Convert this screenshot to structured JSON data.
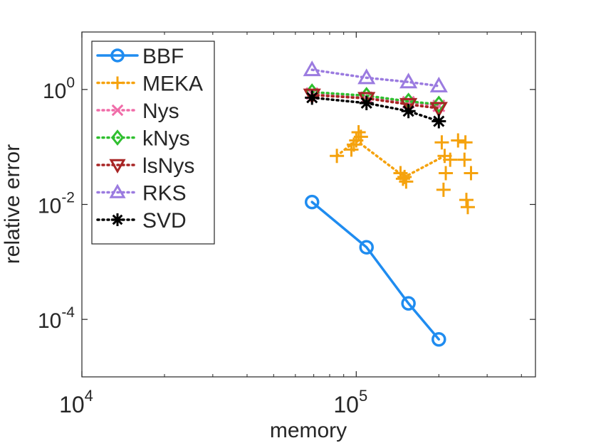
{
  "chart_data": {
    "type": "scatter",
    "xscale": "log",
    "yscale": "log",
    "xlim": [
      10000,
      450000
    ],
    "ylim": [
      1e-05,
      10
    ],
    "xlabel": "memory",
    "ylabel": "relative error",
    "x_ticks": [
      {
        "value": 10000,
        "base": "10",
        "exp": "4"
      },
      {
        "value": 100000,
        "base": "10",
        "exp": "5"
      }
    ],
    "y_ticks": [
      {
        "value": 1,
        "base": "10",
        "exp": "0"
      },
      {
        "value": 0.01,
        "base": "10",
        "exp": "-2"
      },
      {
        "value": 0.0001,
        "base": "10",
        "exp": "-4"
      }
    ],
    "legend_position": "top-left",
    "series": [
      {
        "name": "BBF",
        "color": "#1f8cf0",
        "marker": "circle",
        "line": "solid",
        "points": [
          [
            69000,
            0.011
          ],
          [
            109000,
            0.0018
          ],
          [
            155000,
            0.00019
          ],
          [
            200000,
            4.5e-05
          ]
        ],
        "extra_points": []
      },
      {
        "name": "MEKA",
        "color": "#f5a20d",
        "marker": "plus",
        "line": "dotted",
        "points": [
          [
            85000,
            0.07
          ],
          [
            100000,
            0.13
          ],
          [
            150000,
            0.03
          ],
          [
            210000,
            0.07
          ]
        ],
        "extra_points": [
          [
            96000,
            0.09
          ],
          [
            102000,
            0.18
          ],
          [
            104000,
            0.15
          ],
          [
            98000,
            0.11
          ],
          [
            145000,
            0.035
          ],
          [
            152000,
            0.025
          ],
          [
            148000,
            0.028
          ],
          [
            205000,
            0.12
          ],
          [
            212000,
            0.035
          ],
          [
            208000,
            0.018
          ],
          [
            220000,
            0.06
          ],
          [
            235000,
            0.13
          ],
          [
            250000,
            0.12
          ],
          [
            248000,
            0.06
          ],
          [
            262000,
            0.035
          ],
          [
            252000,
            0.012
          ],
          [
            255000,
            0.009
          ]
        ]
      },
      {
        "name": "Nys",
        "color": "#f06ca8",
        "marker": "x",
        "line": "dotted",
        "points": [
          [
            69000,
            0.85
          ],
          [
            109000,
            0.72
          ],
          [
            155000,
            0.6
          ],
          [
            200000,
            0.52
          ]
        ],
        "extra_points": []
      },
      {
        "name": "kNys",
        "color": "#2fbf2f",
        "marker": "diamond",
        "line": "dotted",
        "points": [
          [
            69000,
            0.9
          ],
          [
            109000,
            0.78
          ],
          [
            155000,
            0.62
          ],
          [
            200000,
            0.55
          ]
        ],
        "extra_points": []
      },
      {
        "name": "lsNys",
        "color": "#a82525",
        "marker": "triangle-down",
        "line": "dotted",
        "points": [
          [
            69000,
            0.8
          ],
          [
            109000,
            0.7
          ],
          [
            155000,
            0.55
          ],
          [
            200000,
            0.47
          ]
        ],
        "extra_points": []
      },
      {
        "name": "RKS",
        "color": "#9b7be0",
        "marker": "triangle-up",
        "line": "dotted",
        "points": [
          [
            69000,
            2.2
          ],
          [
            109000,
            1.6
          ],
          [
            155000,
            1.35
          ],
          [
            200000,
            1.15
          ]
        ],
        "extra_points": []
      },
      {
        "name": "SVD",
        "color": "#000000",
        "marker": "asterisk",
        "line": "dotted",
        "points": [
          [
            69000,
            0.72
          ],
          [
            109000,
            0.58
          ],
          [
            155000,
            0.42
          ],
          [
            200000,
            0.28
          ]
        ],
        "extra_points": []
      }
    ]
  }
}
